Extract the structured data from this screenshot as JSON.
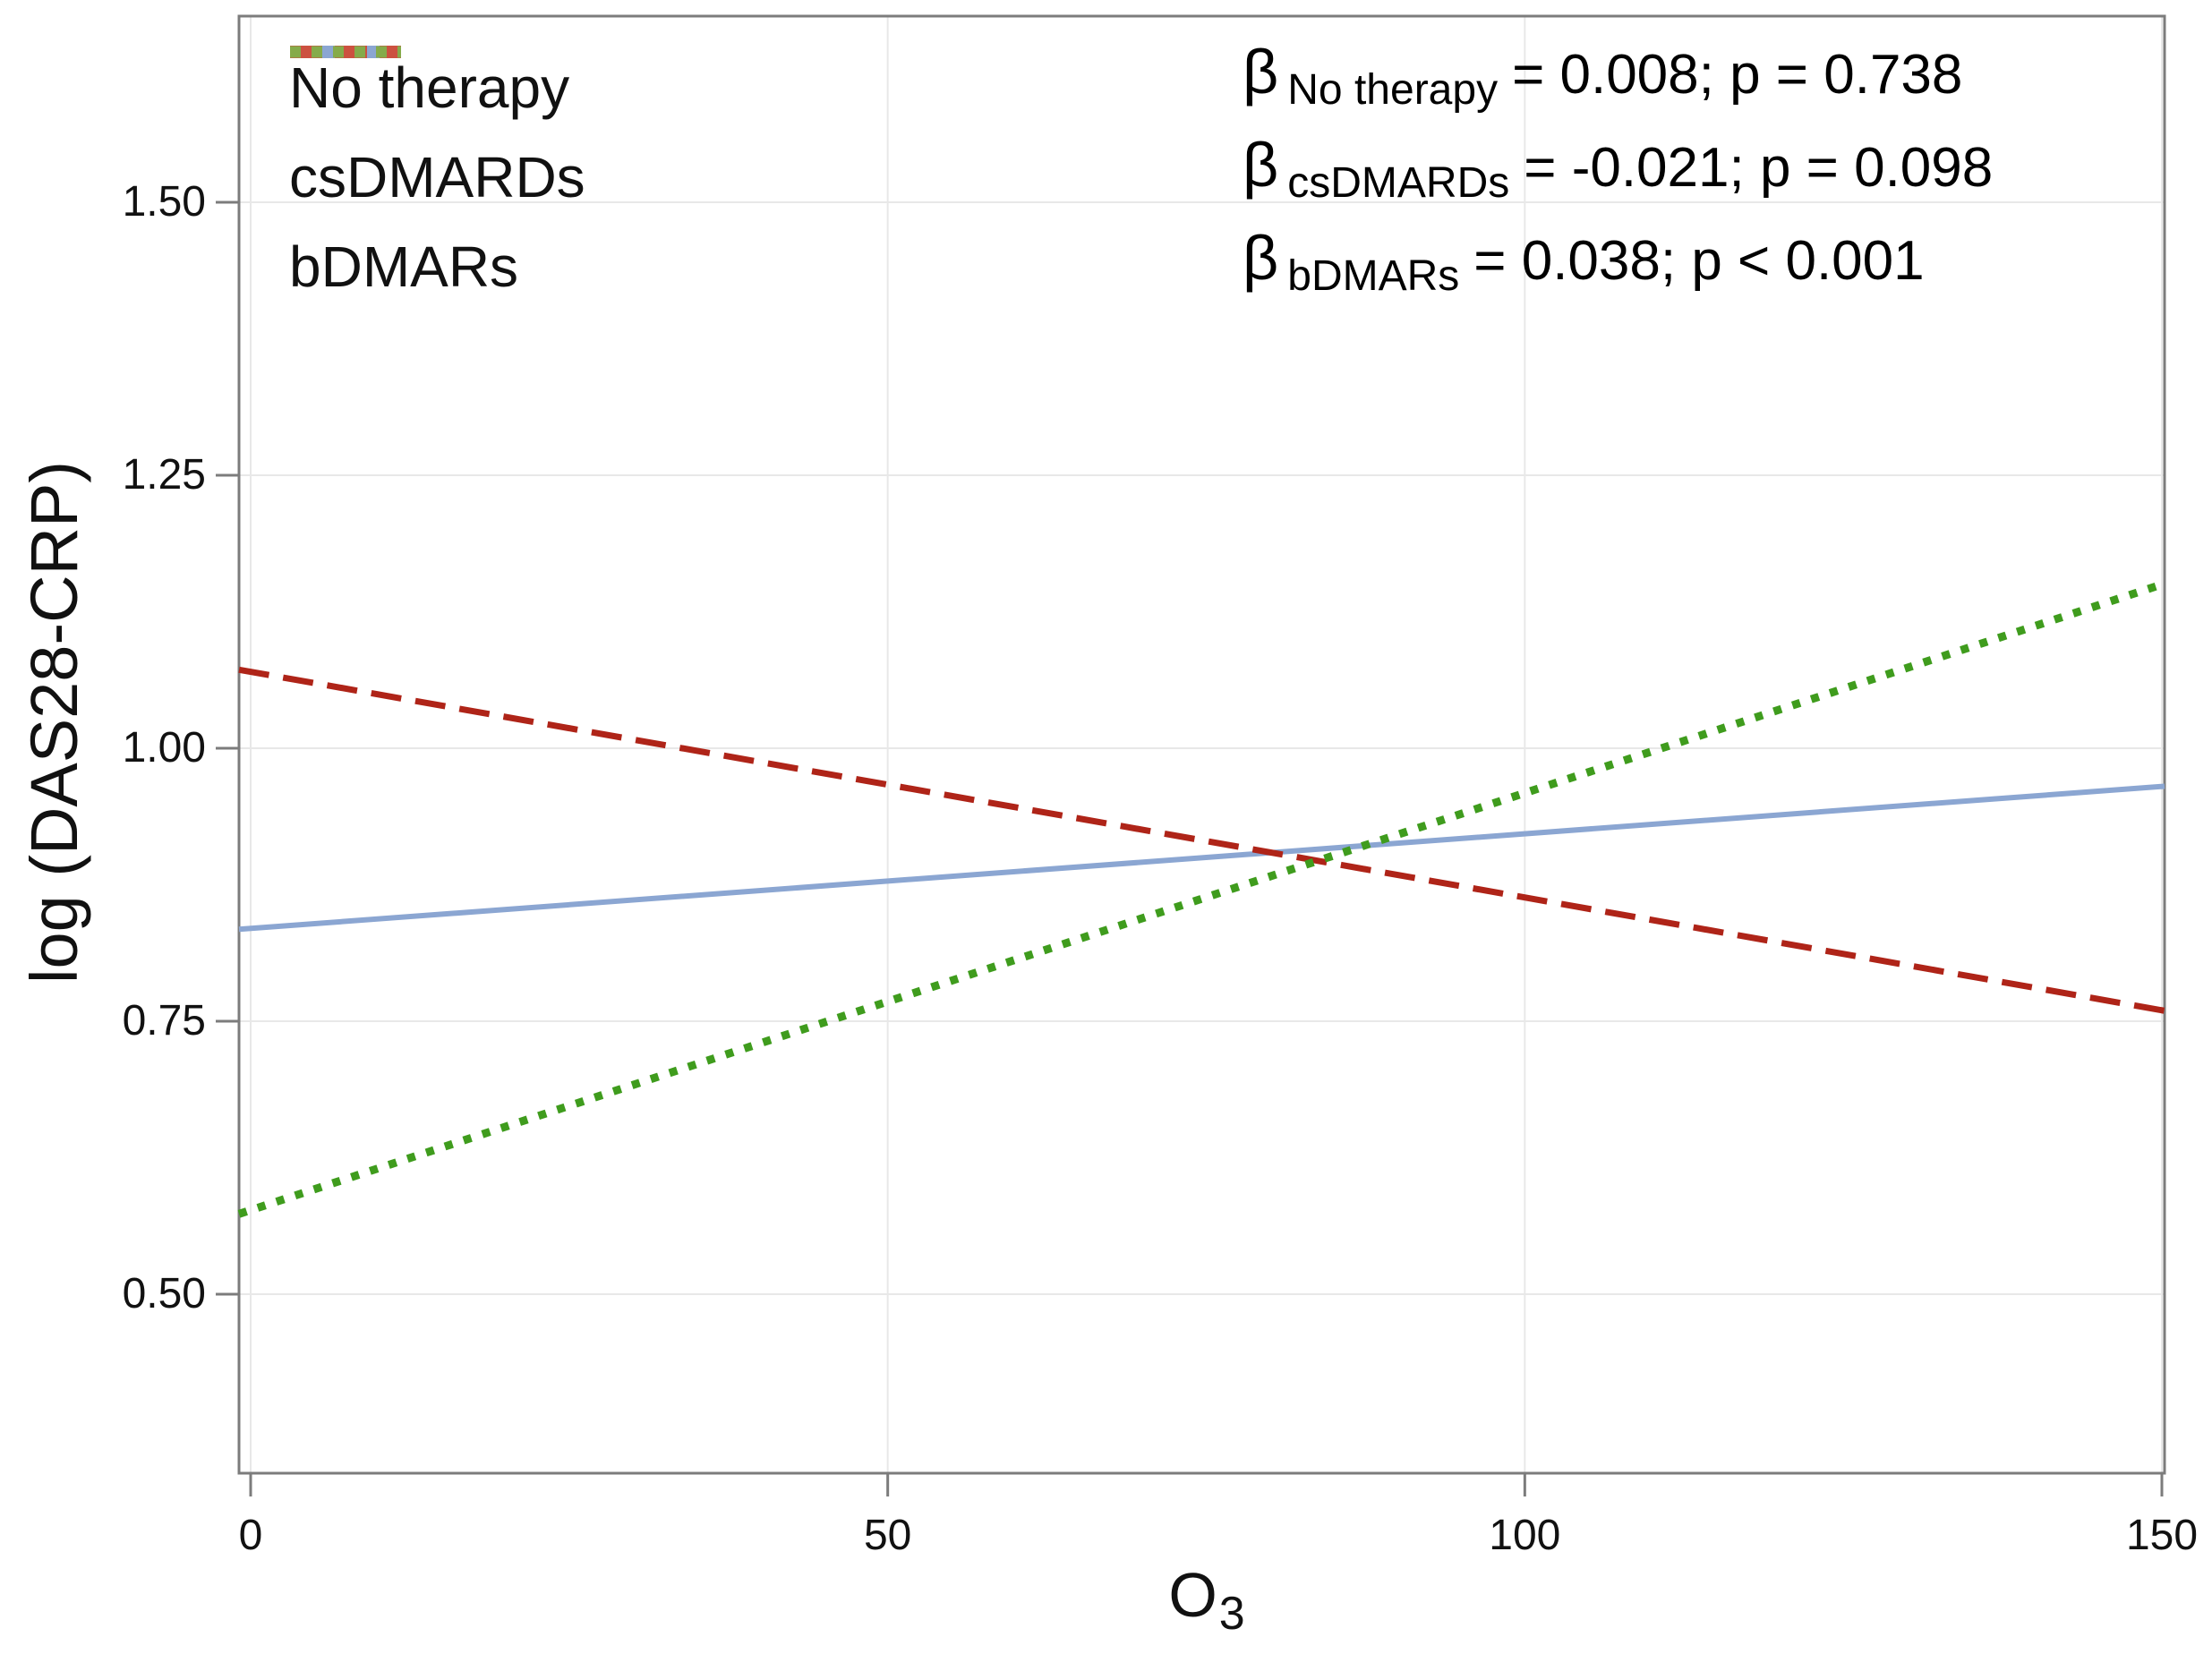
{
  "chart_data": {
    "type": "line",
    "title": "",
    "ylabel": "log (DAS28-CRP)",
    "xlabel": {
      "base": "O",
      "sub": "3"
    },
    "xlim": [
      0,
      150
    ],
    "ylim": [
      0.335,
      1.67
    ],
    "grid": true,
    "legend_position": "top-left-inside",
    "xticks": [
      {
        "value": 0,
        "label": "0"
      },
      {
        "value": 50,
        "label": "50"
      },
      {
        "value": 100,
        "label": "100"
      },
      {
        "value": 150,
        "label": "150"
      }
    ],
    "yticks": [
      {
        "value": 1.5,
        "label": "1.50"
      },
      {
        "value": 1.25,
        "label": "1.25"
      },
      {
        "value": 1.0,
        "label": "1.00"
      },
      {
        "value": 0.75,
        "label": "0.75"
      },
      {
        "value": 0.5,
        "label": "0.50"
      }
    ],
    "series": [
      {
        "name": "No therapy",
        "line_style": "solid",
        "line_color": "#8BA6D2",
        "legend_color": "#8BA6D2",
        "x": [
          0,
          150
        ],
        "y": [
          0.835,
          0.965
        ]
      },
      {
        "name": "csDMARDs",
        "line_style": "dashed",
        "line_color": "#AF2418",
        "legend_color": "#CC5140",
        "x": [
          0,
          150
        ],
        "y": [
          1.07,
          0.76
        ]
      },
      {
        "name": "bDMARs",
        "line_style": "dotted",
        "line_color": "#3F9C1D",
        "legend_color": "#85AB4A",
        "x": [
          0,
          150
        ],
        "y": [
          0.577,
          1.15
        ]
      }
    ],
    "annotations": [
      {
        "beta": "β",
        "subscript": "No therapy",
        "text": "= 0.008; p = 0.738"
      },
      {
        "beta": "β",
        "subscript": "csDMARDs",
        "text": "= -0.021; p = 0.098"
      },
      {
        "beta": "β",
        "subscript": "bDMARs",
        "text": "= 0.038; p < 0.001"
      }
    ],
    "colors": {
      "background": "#FFFFFF",
      "frame": "#7C7C7C",
      "grid": "#E8E8E8",
      "text": "#111111"
    }
  }
}
